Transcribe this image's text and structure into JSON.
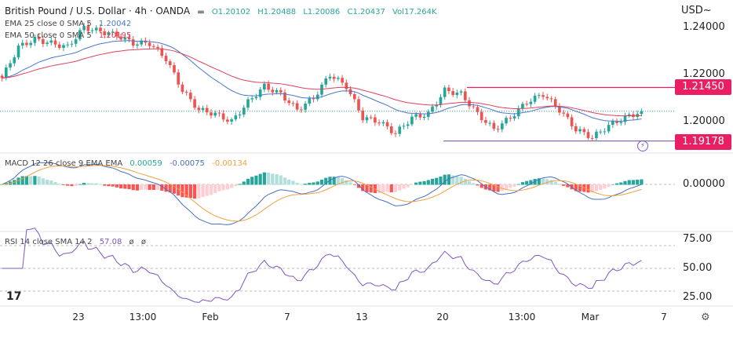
{
  "header": {
    "title": "British Pound / U.S. Dollar · 4h · OANDA",
    "open": "O1.20102",
    "high": "H1.20488",
    "low": "L1.20086",
    "close": "C1.20437",
    "volume": "Vol17.264K",
    "ema25_label": "EMA 25 close 0 SMA 5",
    "ema25_value": "1.20042",
    "ema50_label": "EMA 50 close 0 SMA 5",
    "ema50_value": "1.20195"
  },
  "macd": {
    "label": "MACD 12 26 close 9 EMA EMA",
    "hist": "0.00059",
    "macd": "-0.00075",
    "signal": "-0.00134",
    "zero_label": "0.00000"
  },
  "rsi": {
    "label": "RSI 14 close SMA 14 2",
    "value": "57.08",
    "extra1": "ø",
    "extra2": "ø",
    "ticks": [
      "75.00",
      "50.00",
      "25.00"
    ]
  },
  "price_axis": {
    "currency": "USD~",
    "ticks": [
      "1.24000",
      "1.22000",
      "1.20000"
    ],
    "resistance": "1.21450",
    "support": "1.19178"
  },
  "time_axis": [
    "23",
    "13:00",
    "Feb",
    "7",
    "13",
    "20",
    "13:00",
    "Mar",
    "7"
  ],
  "colors": {
    "up": "#26a69a",
    "down": "#ef5350",
    "ema25": "#4a78c9",
    "ema50": "#e0405e",
    "tag": "#e91e63",
    "signal": "#f0a040"
  },
  "chart_data": {
    "type": "candlestick",
    "symbol": "GBPUSD",
    "interval": "4h",
    "closes_sampled": [
      1.2185,
      1.2317,
      1.235,
      1.2333,
      1.2317,
      1.24,
      1.2383,
      1.2367,
      1.2333,
      1.2333,
      1.2267,
      1.2133,
      1.205,
      1.2033,
      1.2,
      1.2083,
      1.215,
      1.2117,
      1.205,
      1.21,
      1.22,
      1.215,
      1.2017,
      1.2,
      1.195,
      1.2017,
      1.2033,
      1.2133,
      1.2117,
      1.2033,
      1.1967,
      1.2017,
      1.2083,
      1.2117,
      1.205,
      1.1967,
      1.1933,
      1.1983,
      1.2017,
      1.2044
    ],
    "horizontal_lines": [
      1.2145,
      1.19178
    ],
    "ylim": [
      1.187,
      1.247
    ]
  }
}
